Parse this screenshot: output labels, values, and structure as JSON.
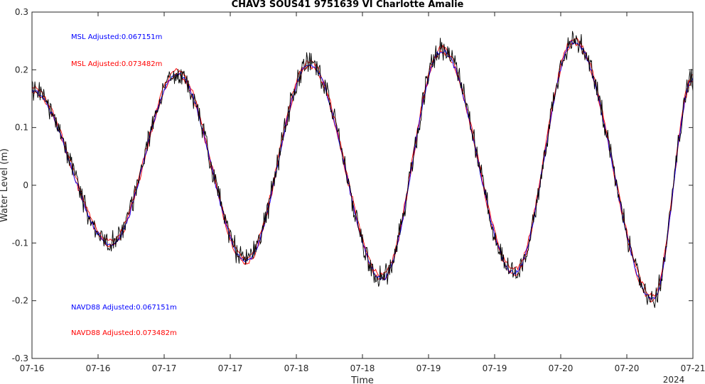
{
  "chart_data": {
    "type": "line",
    "title": "CHAV3 SOUS41 9751639 VI Charlotte Amalie",
    "xlabel": "Time",
    "ylabel": "Water Level (m)",
    "ylim": [
      -0.3,
      0.3
    ],
    "xlim_days": [
      16,
      21
    ],
    "y_ticks": [
      -0.3,
      -0.2,
      -0.1,
      0,
      0.1,
      0.2,
      0.3
    ],
    "y_tick_labels": [
      "-0.3",
      "-0.2",
      "-0.1",
      "0",
      "0.1",
      "0.2",
      "0.3"
    ],
    "x_ticks_days": [
      16,
      16.5,
      17,
      17.5,
      18,
      18.5,
      19,
      19.5,
      20,
      20.5,
      21
    ],
    "x_tick_labels": [
      "07-16",
      "07-16",
      "07-17",
      "07-17",
      "07-18",
      "07-18",
      "07-19",
      "07-19",
      "07-20",
      "07-20",
      "07-21"
    ],
    "x_year_label": "2024",
    "grid": false,
    "annotations": [
      {
        "text": "MSL Adjusted:0.067151m",
        "color": "#0000ff"
      },
      {
        "text": "MSL Adjusted:0.073482m",
        "color": "#ff0000"
      },
      {
        "text": "NAVD88 Adjusted:0.067151m",
        "color": "#0000ff"
      },
      {
        "text": "NAVD88 Adjusted:0.073482m",
        "color": "#ff0000"
      }
    ],
    "extrema": [
      {
        "day": 16.0,
        "value": 0.165
      },
      {
        "day": 16.6,
        "value": -0.1
      },
      {
        "day": 17.1,
        "value": 0.195
      },
      {
        "day": 17.62,
        "value": -0.13
      },
      {
        "day": 18.1,
        "value": 0.21
      },
      {
        "day": 18.65,
        "value": -0.16
      },
      {
        "day": 19.1,
        "value": 0.235
      },
      {
        "day": 19.65,
        "value": -0.15
      },
      {
        "day": 20.1,
        "value": 0.25
      },
      {
        "day": 20.7,
        "value": -0.195
      },
      {
        "day": 21.0,
        "value": 0.185
      }
    ],
    "series": [
      {
        "color": "#000000",
        "offset": 0.0,
        "noise": 0.022
      },
      {
        "color": "#ff0000",
        "offset": 0.004,
        "noise": 0.004
      },
      {
        "color": "#ff0000",
        "offset": -0.004,
        "noise": 0.004
      },
      {
        "color": "#0000ff",
        "offset": -0.002,
        "noise": 0.004
      }
    ]
  }
}
